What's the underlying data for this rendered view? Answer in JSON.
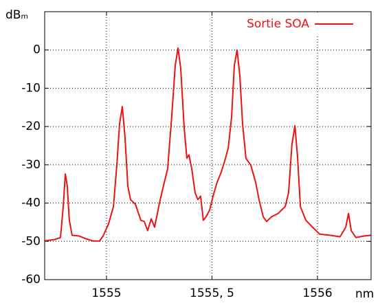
{
  "chart_data": {
    "type": "line",
    "ylabel": "dBₘ",
    "xlabel": "nm",
    "xlim": [
      1554.707,
      1556.254
    ],
    "ylim": [
      -60,
      10
    ],
    "xticks": [
      1555,
      {
        "value": 1555.5,
        "label": "1555, 5"
      },
      1556
    ],
    "yticks": [
      -60,
      -50,
      -40,
      -30,
      -20,
      -10,
      0
    ],
    "grid": true,
    "legend": "upper right",
    "series": [
      {
        "name": "Sortie SOA",
        "color": "#ee1111",
        "x": [
          1554.707,
          1554.756,
          1554.782,
          1554.795,
          1554.805,
          1554.814,
          1554.824,
          1554.837,
          1554.87,
          1554.902,
          1554.935,
          1554.967,
          1554.984,
          1555.01,
          1555.033,
          1555.049,
          1555.062,
          1555.075,
          1555.088,
          1555.101,
          1555.114,
          1555.137,
          1555.163,
          1555.179,
          1555.195,
          1555.212,
          1555.228,
          1555.251,
          1555.27,
          1555.29,
          1555.309,
          1555.326,
          1555.339,
          1555.352,
          1555.368,
          1555.381,
          1555.391,
          1555.404,
          1555.42,
          1555.433,
          1555.446,
          1555.459,
          1555.472,
          1555.489,
          1555.505,
          1555.524,
          1555.544,
          1555.564,
          1555.577,
          1555.593,
          1555.606,
          1555.619,
          1555.632,
          1555.645,
          1555.661,
          1555.684,
          1555.707,
          1555.723,
          1555.743,
          1555.759,
          1555.782,
          1555.814,
          1555.847,
          1555.863,
          1555.879,
          1555.893,
          1555.906,
          1555.919,
          1555.945,
          1555.977,
          1556.01,
          1556.059,
          1556.107,
          1556.134,
          1556.147,
          1556.16,
          1556.182,
          1556.221,
          1556.254
        ],
        "values": [
          -49.9,
          -49.5,
          -49,
          -40.9,
          -32.4,
          -35.5,
          -44.5,
          -48.4,
          -48.6,
          -49.3,
          -49.9,
          -49.9,
          -48.6,
          -45.4,
          -40.9,
          -30.1,
          -19.3,
          -14.8,
          -22.9,
          -35.5,
          -39.1,
          -40.3,
          -44.5,
          -44.8,
          -47.2,
          -44.1,
          -46.3,
          -40,
          -35.5,
          -31,
          -17.5,
          -4,
          0.5,
          -4.9,
          -20.2,
          -28.3,
          -27.4,
          -31,
          -37.3,
          -39.1,
          -38.2,
          -44.5,
          -43.6,
          -41.8,
          -38.2,
          -34.6,
          -31.9,
          -28.3,
          -25.6,
          -17.5,
          -4,
          0,
          -6.7,
          -19.3,
          -28.3,
          -30.1,
          -34.6,
          -39.1,
          -43.6,
          -44.8,
          -43.6,
          -42.7,
          -40.9,
          -37.3,
          -24.7,
          -19.8,
          -28.3,
          -40.9,
          -44.5,
          -46.3,
          -48.1,
          -48.4,
          -48.8,
          -46.3,
          -42.7,
          -47.2,
          -49,
          -48.6,
          -48.4
        ]
      }
    ]
  }
}
